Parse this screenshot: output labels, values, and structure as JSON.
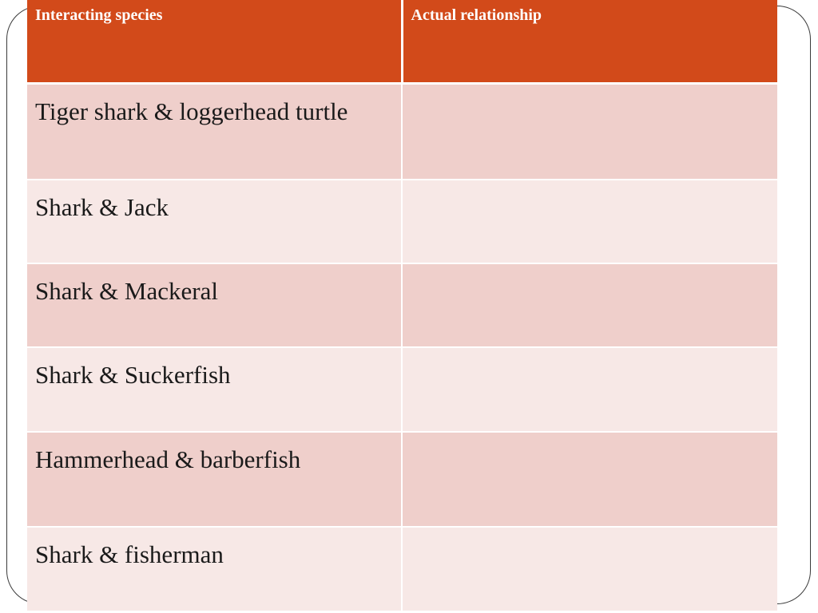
{
  "table": {
    "headers": [
      "Interacting species",
      "Actual relationship"
    ],
    "rows": [
      {
        "species": "Tiger shark & loggerhead turtle",
        "relationship": ""
      },
      {
        "species": "Shark & Jack",
        "relationship": ""
      },
      {
        "species": "Shark & Mackeral",
        "relationship": ""
      },
      {
        "species": "Shark & Suckerfish",
        "relationship": ""
      },
      {
        "species": "Hammerhead & barberfish",
        "relationship": ""
      },
      {
        "species": "Shark & fisherman",
        "relationship": ""
      }
    ]
  },
  "colors": {
    "header_bg": "#d24a1a",
    "row_odd_bg": "#efcfcb",
    "row_even_bg": "#f7e8e6",
    "frame": "#3a3a3a"
  }
}
